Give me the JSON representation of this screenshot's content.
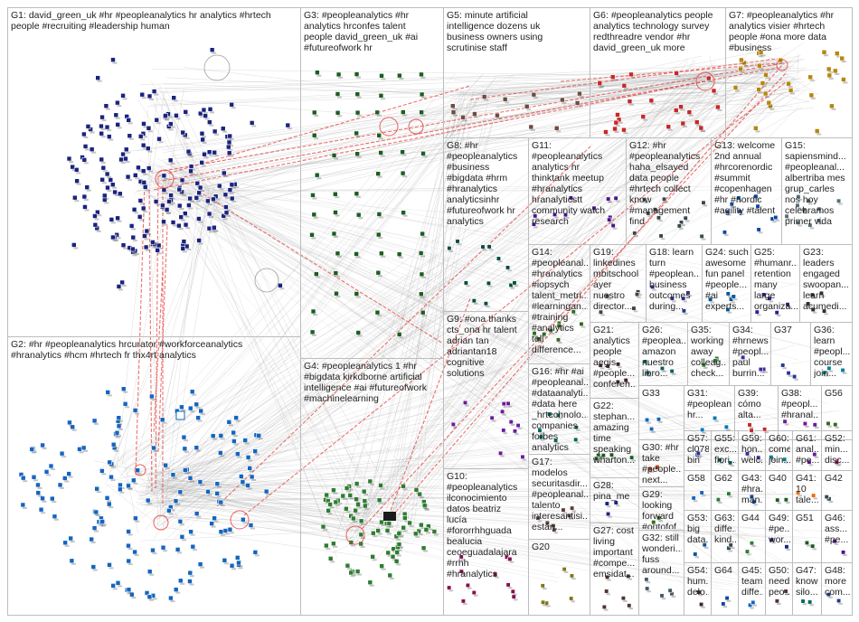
{
  "groups": [
    {
      "id": "G1",
      "text": "G1: david_green_uk #hr #peopleanalytics hr analytics #hrtech\npeople #recruiting #leadership human",
      "color": "#1a237e"
    },
    {
      "id": "G2",
      "text": "G2: #hr #peopleanalytics hrcurator #workforceanalytics\n#hranalytics #hcm #hrtech fr thx4rt analytics",
      "color": "#1565c0"
    },
    {
      "id": "G3",
      "text": "G3: #peopleanalytics #hr\nanalytics hrconfes talent\npeople david_green_uk #ai\n#futureofwork hr",
      "color": "#1b5e20"
    },
    {
      "id": "G4",
      "text": "G4: #peopleanalytics 1 #hr\n#bigdata kirkdborne artificial\nintelligence #ai #futureofwork\n#machinelearning",
      "color": "#2e7d32"
    },
    {
      "id": "G5",
      "text": "G5: minute artificial\nintelligence dozens uk\nbusiness owners using\nscrutinise staff",
      "color": "#6d4c41"
    },
    {
      "id": "G6",
      "text": "G6: #peopleanalytics people\nanalytics technology survey\nredthreadre vendor #hr\ndavid_green_uk more",
      "color": "#c62828"
    },
    {
      "id": "G7",
      "text": "G7: #peopleanalytics #hr\nanalytics visier #hrtech\npeople #ona more data\n#business",
      "color": "#b8860b"
    },
    {
      "id": "G8",
      "text": "G8: #hr\n#peopleanalytics\n#business\n#bigdata #hrm\n#hranalytics\nanalyticsinhr\n#futureofwork hr\nanalytics",
      "color": "#004d40"
    },
    {
      "id": "G9",
      "text": "G9: #ona thanks\ncts_ona hr talent\nadrian tan\nadriantan18\ncognitive\nsolutions",
      "color": "#6a1b9a"
    },
    {
      "id": "G10",
      "text": "G10:\n#peopleanalytics\nilconocimiento\ndatos beatriz\nlucía\n#fororrhhguada\nbealucia\nceoeguadalajara\n#rrhh\n#hranalytics",
      "color": "#880e4f"
    },
    {
      "id": "G11",
      "text": "G11:\n#peopleanalytics\nanalytics hr\nthinktank meetup\n#hranalytics\nhranalyticstt\ncommunity watch\nresearch",
      "color": "#4a148c"
    },
    {
      "id": "G12",
      "text": "G12: #hr\n#peopleanalytics\nhaha_elsayed\ndata people\n#hrtech collect\nknow\n#management\nfind",
      "color": "#37474f"
    },
    {
      "id": "G13",
      "text": "G13: welcome\n2nd annual\n#hrcorenordic\n#summit\n#copenhagen\n#hr #nordic\n#agility #talent",
      "color": "#0d47a1"
    },
    {
      "id": "G14",
      "text": "G14:\n#peopleanal...\n#hranalytics\n#iopsych\ntalent_metri...\n#learningan...\n#training\n#analytics tell\ndifference...",
      "color": "#33691e"
    },
    {
      "id": "G15",
      "text": "G15:\nsapiensmind...\n#peopleanal...\nalbertriba mes\ngrup_carles\nnos hoy\ncelebramos\nprimer vida",
      "color": "#546e7a"
    },
    {
      "id": "G16",
      "text": "G16: #hr #ai\n#peopleanal...\n#dataanalyti...\n#data here\n_hrtechnolo...\ncompanies\nforbes\nanalytics",
      "color": "#00695c"
    },
    {
      "id": "G17",
      "text": "G17:\nmodelos\nsecuritasdir...\n#peopleanal...\ntalento\ninteresantisi...\nestán...",
      "color": "#5d4037"
    },
    {
      "id": "G18",
      "text": "G18: learn\nturn\n#peoplean...\nbusiness\noutcomes\nduring...",
      "color": "#283593"
    },
    {
      "id": "G19",
      "text": "G19:\nlinkedines\nmbitschool\nayer\nnuestro\ndirector...",
      "color": "#424242"
    },
    {
      "id": "G20",
      "text": "G20",
      "color": "#827717"
    },
    {
      "id": "G21",
      "text": "G21:\nanalytics\npeople\naegis\n#people...\nconferen...",
      "color": "#3e2723"
    },
    {
      "id": "G22",
      "text": "G22:\nstephan...\namazing\ntime\nspeaking\nwharton...",
      "color": "#1b5e20"
    },
    {
      "id": "G23",
      "text": "G23:\nleaders\nengaged\nswoopan...\nlearn\nacumedi...",
      "color": "#263238"
    },
    {
      "id": "G24",
      "text": "G24: such\nawesome\nfun panel\n#people...\n#ai\nexperts...",
      "color": "#01579b"
    },
    {
      "id": "G25",
      "text": "G25:\n#humanr...\nretention\nmany\nlarge\norganiza...",
      "color": "#311b92"
    },
    {
      "id": "G26",
      "text": "G26:\n#peoplea...\namazon\nnuestro\nlibro...",
      "color": "#006064"
    },
    {
      "id": "G27",
      "text": "G27: cost\nliving\nimportant\n#compe...\nemsidat...",
      "color": "#4e342e"
    },
    {
      "id": "G28",
      "text": "G28:\npina_me",
      "color": "#1a237e"
    },
    {
      "id": "G29",
      "text": "G29:\nlooking\nforward\n#outofof...",
      "color": "#33691e"
    },
    {
      "id": "G30",
      "text": "G30: #hr\ntake\n#people...\nnext...",
      "color": "#bf360c"
    },
    {
      "id": "G31",
      "text": "G31:\n#peoplean...\nhr...",
      "color": "#0277bd"
    },
    {
      "id": "G32",
      "text": "G32: still\nwonderi...\nfuss\naround...",
      "color": "#455a64"
    },
    {
      "id": "G33",
      "text": "G33",
      "color": "#1565c0"
    },
    {
      "id": "G34",
      "text": "G34:\n#hrnews\n#peopl...\npaul\nburrin...",
      "color": "#4527a0"
    },
    {
      "id": "G35",
      "text": "G35:\nworking\naway\ncolleag...\ncheck...",
      "color": "#2e7d32"
    },
    {
      "id": "G36",
      "text": "G36:\nlearn\n#peopl...\ncourse\njoin...",
      "color": "#00838f"
    },
    {
      "id": "G37",
      "text": "G37",
      "color": "#283593"
    },
    {
      "id": "G38",
      "text": "G38:\n#peopl...\n#hranal...",
      "color": "#6a1b9a"
    },
    {
      "id": "G39",
      "text": "G39:\ncómo\nalta...",
      "color": "#c62828"
    },
    {
      "id": "G40",
      "text": "G40",
      "color": "#1b5e20"
    },
    {
      "id": "G41",
      "text": "G41:\n10\ntale...",
      "color": "#ef6c00"
    },
    {
      "id": "G42",
      "text": "G42",
      "color": "#37474f"
    },
    {
      "id": "G43",
      "text": "G43:\n#hra...\nman...",
      "color": "#0d47a1"
    },
    {
      "id": "G44",
      "text": "G44",
      "color": "#2e7d32"
    },
    {
      "id": "G45",
      "text": "G45:\nteam\ndiffe...",
      "color": "#1565c0"
    },
    {
      "id": "G46",
      "text": "G46:\nass...\n#pe...",
      "color": "#4a148c"
    },
    {
      "id": "G47",
      "text": "G47:\nknow\nsilo...",
      "color": "#00695c"
    },
    {
      "id": "G48",
      "text": "G48:\nmore\ncom...",
      "color": "#283593"
    },
    {
      "id": "G49",
      "text": "G49:\n#pe...\nwor...",
      "color": "#1a237e"
    },
    {
      "id": "G50",
      "text": "G50:\nneed\npeo...",
      "color": "#4e342e"
    },
    {
      "id": "G51",
      "text": "G51",
      "color": "#1b5e20"
    },
    {
      "id": "G52",
      "text": "G52:\nmin...\ndisc...",
      "color": "#880e4f"
    },
    {
      "id": "G53",
      "text": "G53:\nbig\ndata...",
      "color": "#01579b"
    },
    {
      "id": "G54",
      "text": "G54:\nhum...\ndelo...",
      "color": "#3e2723"
    },
    {
      "id": "G55",
      "text": "G55:\nexc...\nflori...",
      "color": "#006064"
    },
    {
      "id": "G56",
      "text": "G56",
      "color": "#33691e"
    },
    {
      "id": "G57",
      "text": "G57:\ncl078\nbin",
      "color": "#283593"
    },
    {
      "id": "G58",
      "text": "G58",
      "color": "#1565c0"
    },
    {
      "id": "G59",
      "text": "G59:\nhon...\nwelc...",
      "color": "#4527a0"
    },
    {
      "id": "G60",
      "text": "G60:\ncome\njoin...",
      "color": "#00838f"
    },
    {
      "id": "G61",
      "text": "G61:\nanal...\n#pe...",
      "color": "#6a1b9a"
    },
    {
      "id": "G62",
      "text": "G62",
      "color": "#2e7d32"
    },
    {
      "id": "G63",
      "text": "G63:\ndiffe...\nkind...",
      "color": "#37474f"
    },
    {
      "id": "G64",
      "text": "G64",
      "color": "#0d47a1"
    }
  ]
}
